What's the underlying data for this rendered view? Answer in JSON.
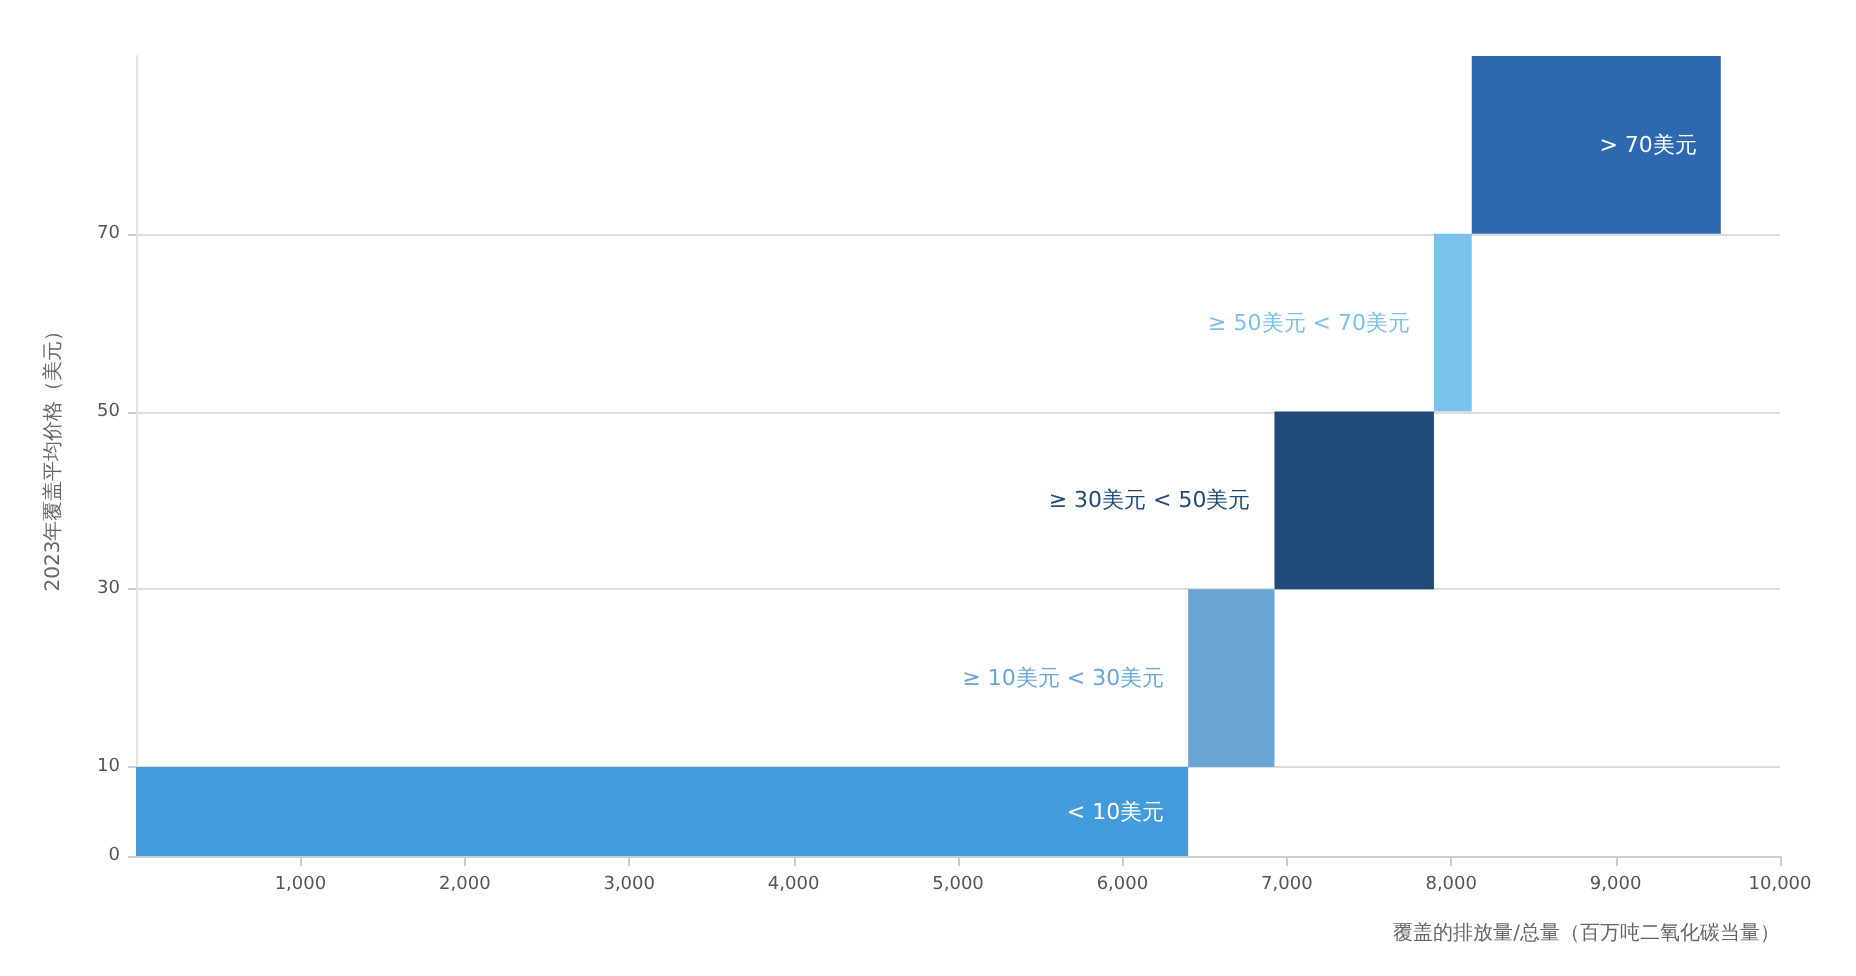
{
  "chart_data": {
    "type": "histogram",
    "xlabel": "覆盖的排放量/总量（百万吨二氧化碳当量）",
    "ylabel": "2023年覆盖平均价格（美元）",
    "bins": [
      0,
      6400,
      6925,
      7895,
      8125,
      9640
    ],
    "base": [
      0,
      10,
      30,
      50,
      70
    ],
    "values": [
      10,
      20,
      20,
      20,
      20
    ],
    "colors": [
      "#449bdb",
      "#6aa6d3",
      "#1f4a79",
      "#7ac2ee",
      "#2d69b0"
    ],
    "annotations": [
      "< 10美元",
      "≥ 10美元 < 30美元",
      "≥ 30美元 < 50美元",
      "≥ 50美元 < 70美元",
      "> 70美元"
    ],
    "xlim": [
      0,
      10000
    ],
    "xticks": [
      {
        "value": 1000,
        "label": "1,000"
      },
      {
        "value": 2000,
        "label": "2,000"
      },
      {
        "value": 3000,
        "label": "3,000"
      },
      {
        "value": 4000,
        "label": "4,000"
      },
      {
        "value": 5000,
        "label": "5,000"
      },
      {
        "value": 6000,
        "label": "6,000"
      },
      {
        "value": 7000,
        "label": "7,000"
      },
      {
        "value": 8000,
        "label": "8,000"
      },
      {
        "value": 9000,
        "label": "9,000"
      },
      {
        "value": 10000,
        "label": "10,000"
      }
    ],
    "ylim": [
      0,
      90
    ],
    "yticks": [
      0,
      10,
      30,
      50,
      70
    ],
    "grid": "y"
  }
}
